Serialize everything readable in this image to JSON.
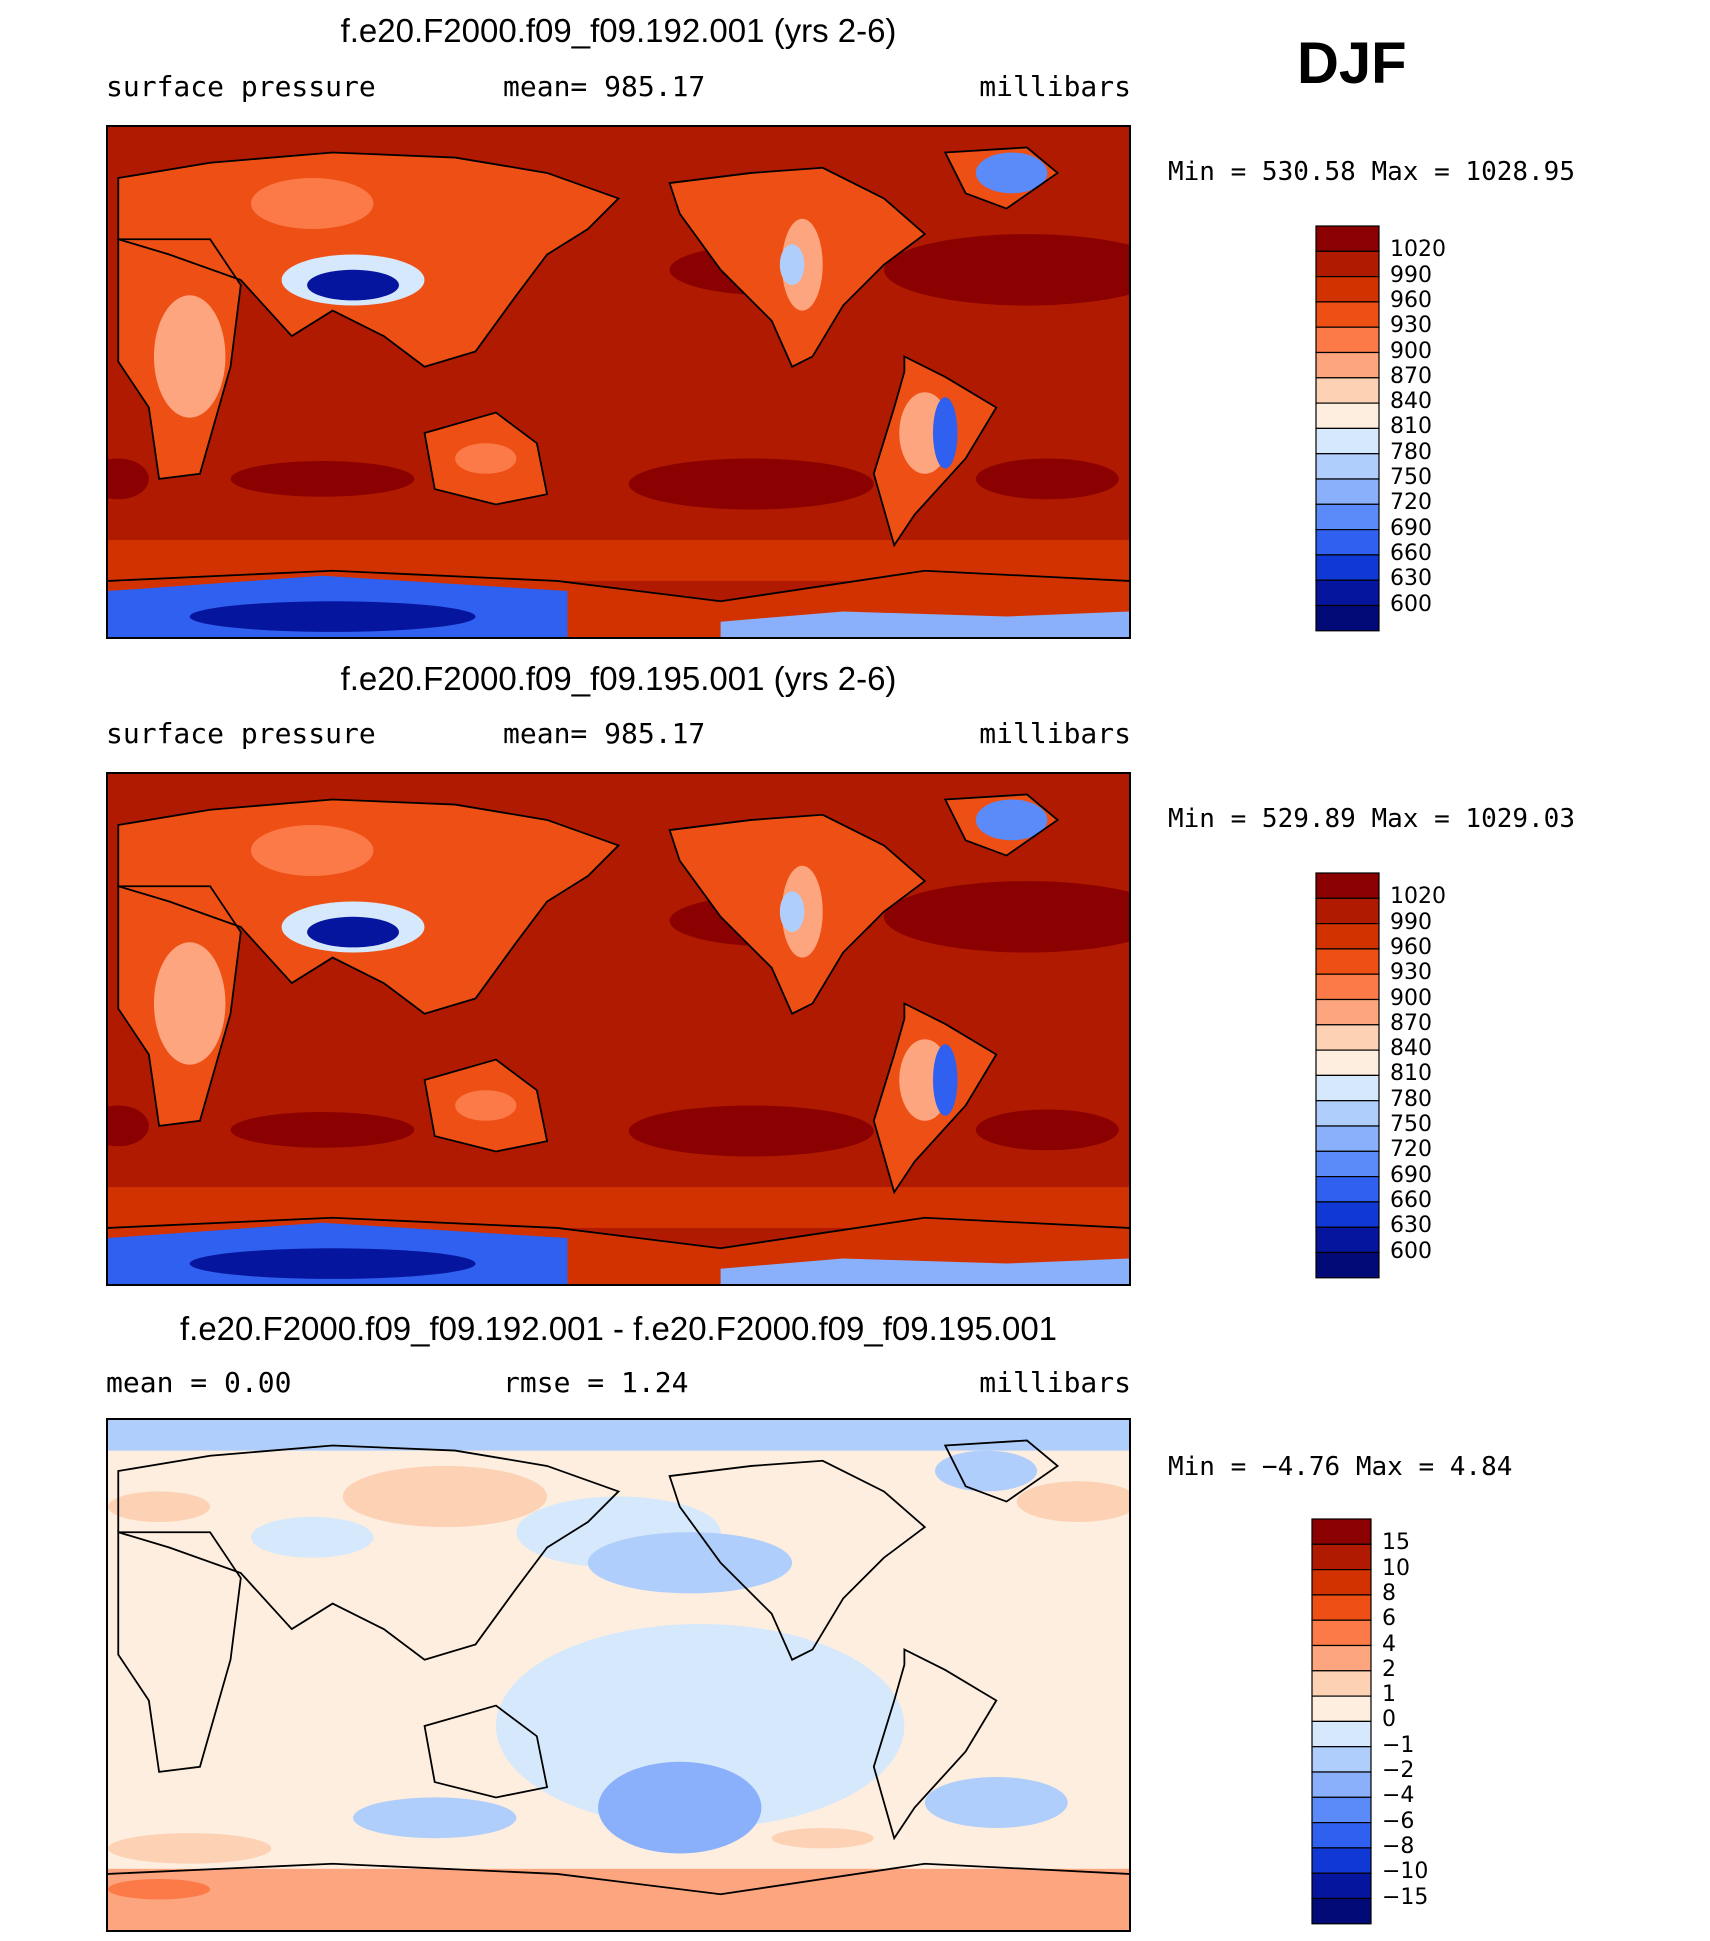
{
  "season": "DJF",
  "units": "millibars",
  "chart_data": [
    {
      "type": "heatmap",
      "title": "f.e20.F2000.f09_f09.192.001 (yrs 2-6)",
      "subtitle_left": "surface pressure",
      "subtitle_center": "mean= 985.17",
      "subtitle_right": "millibars",
      "min_max": "Min = 530.58 Max = 1028.95",
      "min": 530.58,
      "max": 1028.95,
      "mean": 985.17,
      "colorbar": {
        "labels": [
          "1020",
          "990",
          "960",
          "930",
          "900",
          "870",
          "840",
          "810",
          "780",
          "750",
          "720",
          "690",
          "660",
          "630",
          "600"
        ],
        "colors": [
          "#8b0000",
          "#b01a00",
          "#d23200",
          "#ee4f14",
          "#fb7a47",
          "#fca57e",
          "#fdd2b4",
          "#fdeee0",
          "#d6e8fb",
          "#b0cefb",
          "#8ab0fb",
          "#5b8bf8",
          "#3060f0",
          "#1038d4",
          "#06159e",
          "#020a78"
        ]
      }
    },
    {
      "type": "heatmap",
      "title": "f.e20.F2000.f09_f09.195.001 (yrs 2-6)",
      "subtitle_left": "surface pressure",
      "subtitle_center": "mean= 985.17",
      "subtitle_right": "millibars",
      "min_max": "Min = 529.89 Max = 1029.03",
      "min": 529.89,
      "max": 1029.03,
      "mean": 985.17,
      "colorbar": {
        "labels": [
          "1020",
          "990",
          "960",
          "930",
          "900",
          "870",
          "840",
          "810",
          "780",
          "750",
          "720",
          "690",
          "660",
          "630",
          "600"
        ],
        "colors": [
          "#8b0000",
          "#b01a00",
          "#d23200",
          "#ee4f14",
          "#fb7a47",
          "#fca57e",
          "#fdd2b4",
          "#fdeee0",
          "#d6e8fb",
          "#b0cefb",
          "#8ab0fb",
          "#5b8bf8",
          "#3060f0",
          "#1038d4",
          "#06159e",
          "#020a78"
        ]
      }
    },
    {
      "type": "heatmap",
      "title": "f.e20.F2000.f09_f09.192.001 - f.e20.F2000.f09_f09.195.001",
      "subtitle_left": "mean =    0.00",
      "subtitle_center": "rmse =    1.24",
      "subtitle_right": "millibars",
      "min_max": "Min =  −4.76 Max =    4.84",
      "min": -4.76,
      "max": 4.84,
      "mean": 0.0,
      "rmse": 1.24,
      "colorbar": {
        "labels": [
          "15",
          "10",
          "8",
          "6",
          "4",
          "2",
          "1",
          "0",
          "−1",
          "−2",
          "−4",
          "−6",
          "−8",
          "−10",
          "−15"
        ],
        "colors": [
          "#8b0000",
          "#b01a00",
          "#d23200",
          "#ee4f14",
          "#fb7a47",
          "#fca57e",
          "#fdd2b4",
          "#fdeee0",
          "#d6e8fb",
          "#b0cefb",
          "#8ab0fb",
          "#5b8bf8",
          "#3060f0",
          "#1038d4",
          "#06159e",
          "#020a78"
        ]
      }
    }
  ]
}
